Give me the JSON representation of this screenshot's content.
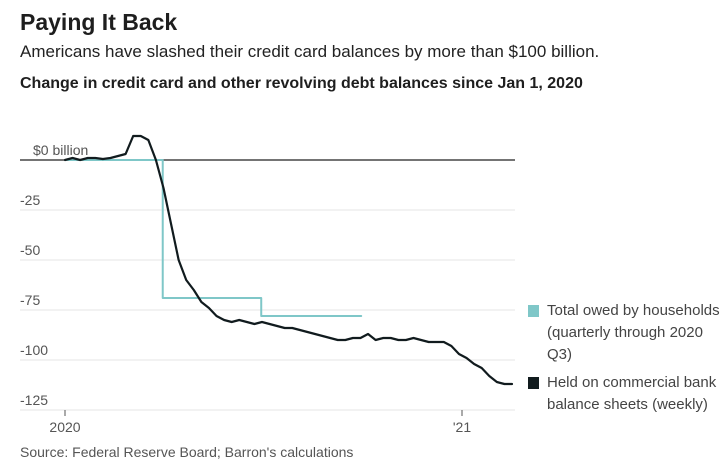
{
  "header": {
    "title": "Paying It Back",
    "subtitle": "Americans have slashed their credit card balances by more than $100 billion.",
    "chart_title": "Change in credit card and other revolving debt balances since Jan 1, 2020"
  },
  "footer": {
    "source": "Source: Federal Reserve Board; Barron's calculations"
  },
  "colors": {
    "households": "#7fc7c8",
    "banks": "#111b1e",
    "zero_line": "#222222",
    "grid": "#e6e6e6"
  },
  "chart_data": {
    "type": "line",
    "title": "Change in credit card and other revolving debt balances since Jan 1, 2020",
    "xlabel": "",
    "ylabel": "",
    "ylim": [
      -125,
      0
    ],
    "y_ticks": [
      {
        "value": 0,
        "label": "$0 billion"
      },
      {
        "value": -25,
        "label": "-25"
      },
      {
        "value": -50,
        "label": "-50"
      },
      {
        "value": -75,
        "label": "-75"
      },
      {
        "value": -100,
        "label": "-100"
      },
      {
        "value": -125,
        "label": "-125"
      }
    ],
    "x_unit": "weeks since Jan 1, 2020",
    "x_ticks": [
      {
        "value": 0,
        "label": "2020"
      },
      {
        "value": 52.4,
        "label": "'21"
      }
    ],
    "grid": true,
    "legend_position": "right",
    "series": [
      {
        "name": "Total owed by households (quarterly through 2020 Q3)",
        "color": "#7fc7c8",
        "step": true,
        "x": [
          0,
          12.9,
          25.9,
          39.1
        ],
        "y": [
          0,
          -69,
          -78,
          -78
        ]
      },
      {
        "name": "Held on commercial bank balance sheets (weekly)",
        "color": "#111b1e",
        "step": false,
        "x": [
          0,
          1,
          2,
          3,
          4,
          5,
          6,
          7,
          8,
          9,
          10,
          11,
          12,
          13,
          14,
          15,
          16,
          17,
          18,
          19,
          20,
          21,
          22,
          23,
          24,
          25,
          26,
          27,
          28,
          29,
          30,
          31,
          32,
          33,
          34,
          35,
          36,
          37,
          38,
          39,
          40,
          41,
          42,
          43,
          44,
          45,
          46,
          47,
          48,
          49,
          50,
          51,
          52,
          53,
          54,
          55,
          56,
          57,
          58,
          59
        ],
        "y": [
          0,
          1,
          0,
          1,
          1,
          0.5,
          1,
          2,
          3,
          12,
          12,
          10,
          0,
          -14,
          -32,
          -50,
          -60,
          -65,
          -71,
          -74,
          -78,
          -80,
          -81,
          -80,
          -81,
          -82,
          -81,
          -82,
          -83,
          -84,
          -84,
          -85,
          -86,
          -87,
          -88,
          -89,
          -90,
          -90,
          -89,
          -89,
          -87,
          -90,
          -89,
          -89,
          -90,
          -90,
          -89,
          -90,
          -91,
          -91,
          -91,
          -93,
          -97,
          -99,
          -102,
          -104,
          -108,
          -111,
          -112,
          -112
        ]
      }
    ]
  }
}
